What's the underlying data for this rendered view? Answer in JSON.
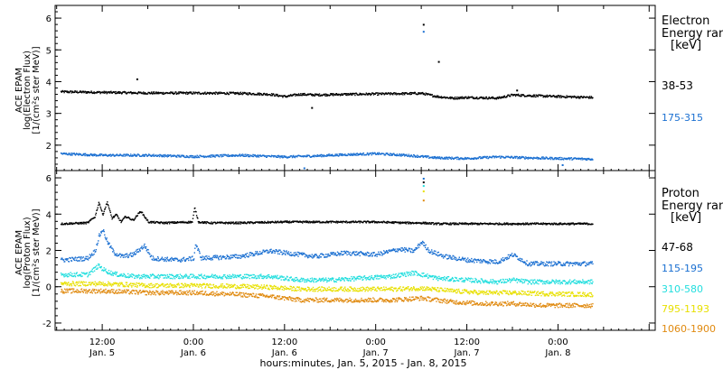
{
  "chart_data": {
    "type": "scatter",
    "xlabel": "hours:minutes, Jan.  5, 2015 - Jan.  8, 2015",
    "x_ticks": [
      {
        "x": 12,
        "time": "12:00",
        "date": "Jan. 5"
      },
      {
        "x": 24,
        "time": "0:00",
        "date": "Jan. 6"
      },
      {
        "x": 36,
        "time": "12:00",
        "date": "Jan. 6"
      },
      {
        "x": 48,
        "time": "0:00",
        "date": "Jan. 7"
      },
      {
        "x": 60,
        "time": "12:00",
        "date": "Jan. 7"
      },
      {
        "x": 72,
        "time": "0:00",
        "date": "Jan. 8"
      }
    ],
    "xlim": [
      5.8,
      84.8
    ],
    "data_end": 76.5,
    "panels": [
      {
        "id": "electron",
        "ylabel": [
          "ACE EPAM",
          "log(Electron Flux)",
          "[1/(cm²s ster MeV)]"
        ],
        "ylim": [
          1.2,
          6.4
        ],
        "yticks": [
          2,
          3,
          4,
          5,
          6
        ],
        "legend_title": [
          "Electron",
          "Energy ran",
          "[keV]"
        ],
        "series": [
          {
            "name": "38-53",
            "color": "#000000",
            "x": [
              6.5,
              12,
              18,
              24,
              30,
              34,
              36,
              38,
              40,
              44,
              48,
              54,
              56,
              58,
              60,
              64,
              66,
              68,
              72,
              76.5
            ],
            "y": [
              3.7,
              3.68,
              3.66,
              3.66,
              3.65,
              3.62,
              3.55,
              3.62,
              3.6,
              3.62,
              3.63,
              3.65,
              3.55,
              3.5,
              3.52,
              3.5,
              3.6,
              3.58,
              3.55,
              3.52
            ],
            "spikes": [
              [
                16.5,
                4.1
              ],
              [
                39.5,
                3.2
              ],
              [
                54.2,
                5.82
              ],
              [
                56.2,
                4.65
              ],
              [
                66.5,
                3.75
              ]
            ]
          },
          {
            "name": "175-315",
            "color": "#1a6fd1",
            "x": [
              6.5,
              12,
              18,
              24,
              30,
              36,
              40,
              44,
              48,
              52,
              56,
              60,
              64,
              68,
              72,
              76.5
            ],
            "y": [
              1.75,
              1.7,
              1.7,
              1.66,
              1.7,
              1.65,
              1.68,
              1.72,
              1.75,
              1.7,
              1.62,
              1.6,
              1.65,
              1.62,
              1.6,
              1.58
            ],
            "spikes": [
              [
                54.2,
                5.6
              ],
              [
                38.5,
                1.3
              ],
              [
                72.5,
                1.4
              ]
            ]
          }
        ]
      },
      {
        "id": "proton",
        "ylabel": [
          "ACE EPAM",
          "log(Proton Flux)",
          "[1/(cm²s ster MeV)]"
        ],
        "ylim": [
          -2.4,
          6.4
        ],
        "yticks": [
          -2,
          0,
          2,
          4,
          6
        ],
        "legend_title": [
          "Proton",
          "Energy ran",
          "[keV]"
        ],
        "series": [
          {
            "name": "47-68",
            "color": "#000000",
            "x": [
              6.5,
              10,
              11,
              11.5,
              12,
              12.6,
              13.2,
              13.8,
              14.4,
              15,
              16,
              17,
              18,
              20,
              23.8,
              24.1,
              24.6,
              26,
              30,
              36,
              42,
              48,
              52,
              54,
              56,
              60,
              66,
              72,
              76.5
            ],
            "y": [
              3.5,
              3.55,
              3.9,
              4.7,
              4.0,
              4.7,
              3.8,
              4.0,
              3.6,
              3.9,
              3.7,
              4.2,
              3.6,
              3.55,
              3.6,
              4.4,
              3.6,
              3.55,
              3.55,
              3.6,
              3.6,
              3.6,
              3.55,
              3.55,
              3.5,
              3.5,
              3.5,
              3.5,
              3.5
            ],
            "spikes": [
              [
                54.2,
                5.8
              ]
            ]
          },
          {
            "name": "115-195",
            "color": "#1a6fd1",
            "x": [
              6.5,
              10,
              11,
              11.5,
              12,
              12.6,
              13.5,
              14.5,
              16,
              17.5,
              18.5,
              22,
              24,
              24.2,
              25,
              30,
              34,
              38,
              40,
              44,
              48,
              51,
              53,
              54,
              55,
              57,
              60,
              64,
              66,
              68,
              72,
              76.5
            ],
            "y": [
              1.5,
              1.6,
              2.0,
              2.8,
              3.2,
              2.5,
              1.9,
              1.7,
              1.8,
              2.3,
              1.6,
              1.5,
              1.6,
              2.4,
              1.6,
              1.7,
              2.0,
              1.8,
              1.7,
              1.9,
              1.8,
              2.1,
              2.0,
              2.5,
              2.0,
              1.7,
              1.5,
              1.4,
              1.8,
              1.3,
              1.3,
              1.3
            ],
            "spikes": [
              [
                54.2,
                6.0
              ]
            ]
          },
          {
            "name": "310-580",
            "color": "#22dede",
            "x": [
              6.5,
              10,
              11.5,
              12,
              13,
              14,
              16,
              20,
              24,
              28,
              34,
              38,
              42,
              46,
              50,
              53,
              54,
              56,
              60,
              64,
              66,
              68,
              72,
              76.5
            ],
            "y": [
              0.7,
              0.7,
              1.2,
              1.0,
              0.8,
              0.7,
              0.6,
              0.6,
              0.6,
              0.6,
              0.6,
              0.4,
              0.4,
              0.5,
              0.6,
              0.8,
              0.7,
              0.5,
              0.4,
              0.3,
              0.4,
              0.3,
              0.3,
              0.3
            ],
            "spikes": [
              [
                54.2,
                5.6
              ]
            ]
          },
          {
            "name": "795-1193",
            "color": "#e8e000",
            "x": [
              6.5,
              12,
              18,
              24,
              30,
              34,
              38,
              42,
              46,
              50,
              54,
              58,
              62,
              66,
              70,
              76.5
            ],
            "y": [
              0.2,
              0.2,
              0.1,
              0.1,
              0.05,
              0.0,
              -0.1,
              -0.1,
              -0.1,
              -0.1,
              -0.05,
              -0.2,
              -0.3,
              -0.3,
              -0.35,
              -0.4
            ],
            "spikes": [
              [
                54.2,
                5.3
              ]
            ]
          },
          {
            "name": "1060-1900",
            "color": "#e08a10",
            "x": [
              6.5,
              12,
              18,
              24,
              30,
              34,
              38,
              42,
              46,
              50,
              54,
              58,
              62,
              66,
              70,
              76.5
            ],
            "y": [
              -0.2,
              -0.2,
              -0.3,
              -0.3,
              -0.4,
              -0.5,
              -0.7,
              -0.7,
              -0.7,
              -0.7,
              -0.6,
              -0.8,
              -0.9,
              -0.9,
              -1.0,
              -1.0
            ],
            "spikes": [
              [
                54.2,
                4.8
              ]
            ]
          }
        ]
      }
    ]
  }
}
